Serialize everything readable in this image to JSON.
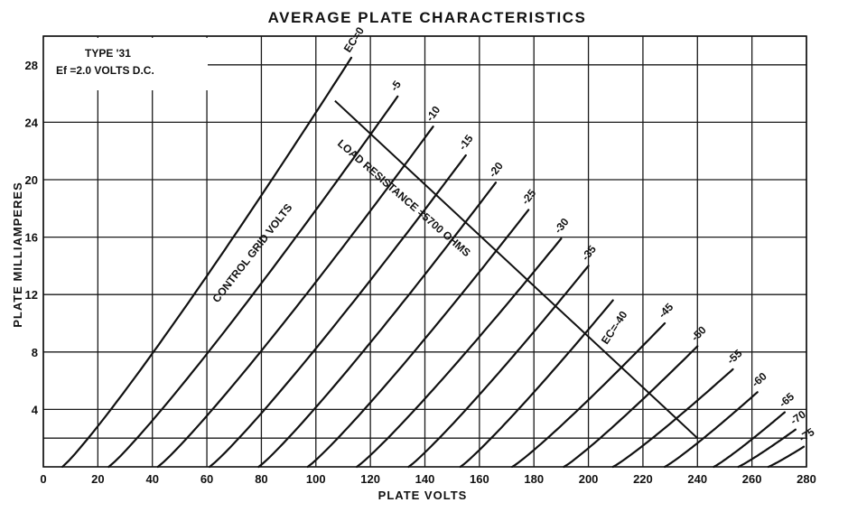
{
  "chart_data": {
    "type": "line",
    "title": "AVERAGE PLATE CHARACTERISTICS",
    "xlabel": "PLATE VOLTS",
    "ylabel": "PLATE MILLIAMPERES",
    "xlim": [
      0,
      280
    ],
    "ylim": [
      0,
      30
    ],
    "x_ticks": [
      "0",
      "20",
      "40",
      "60",
      "80",
      "100",
      "120",
      "140",
      "160",
      "180",
      "200",
      "220",
      "240",
      "260",
      "280"
    ],
    "y_ticks": [
      "4",
      "8",
      "12",
      "16",
      "20",
      "24",
      "28"
    ],
    "grid": true,
    "annotations": {
      "type_line": "TYPE '31",
      "filament_line": "Ef =2.0 VOLTS D.C.",
      "family_label": "CONTROL GRID VOLTS",
      "load_line_label": "LOAD RESISTANCE =5700 OHMS",
      "operating_point_label": "EC=-40"
    },
    "series": [
      {
        "name": "EC=0",
        "label": "EC=0",
        "x_start": 7,
        "x_end": 113,
        "y_end": 28.5
      },
      {
        "name": "-5",
        "label": "-5",
        "x_start": 24,
        "x_end": 130,
        "y_end": 25.8
      },
      {
        "name": "-10",
        "label": "-10",
        "x_start": 42,
        "x_end": 143,
        "y_end": 23.7
      },
      {
        "name": "-15",
        "label": "-15",
        "x_start": 61,
        "x_end": 155,
        "y_end": 21.7
      },
      {
        "name": "-20",
        "label": "-20",
        "x_start": 79,
        "x_end": 166,
        "y_end": 19.8
      },
      {
        "name": "-25",
        "label": "-25",
        "x_start": 97,
        "x_end": 178,
        "y_end": 17.9
      },
      {
        "name": "-30",
        "label": "-30",
        "x_start": 115,
        "x_end": 190,
        "y_end": 15.9
      },
      {
        "name": "-35",
        "label": "-35",
        "x_start": 134,
        "x_end": 200,
        "y_end": 14.0
      },
      {
        "name": "-40",
        "label": "",
        "x_start": 153,
        "x_end": 209,
        "y_end": 11.6
      },
      {
        "name": "-45",
        "label": "-45",
        "x_start": 172,
        "x_end": 228,
        "y_end": 10.0
      },
      {
        "name": "-50",
        "label": "-50",
        "x_start": 191,
        "x_end": 240,
        "y_end": 8.4
      },
      {
        "name": "-55",
        "label": "-55",
        "x_start": 209,
        "x_end": 253,
        "y_end": 6.8
      },
      {
        "name": "-60",
        "label": "-60",
        "x_start": 228,
        "x_end": 262,
        "y_end": 5.2
      },
      {
        "name": "-65",
        "label": "-65",
        "x_start": 246,
        "x_end": 272,
        "y_end": 3.8
      },
      {
        "name": "-70",
        "label": "-70",
        "x_start": 255,
        "x_end": 276,
        "y_end": 2.6
      },
      {
        "name": "-75",
        "label": "-75",
        "x_start": 266,
        "x_end": 279,
        "y_end": 1.4
      }
    ],
    "load_line": {
      "x": [
        107,
        240
      ],
      "y": [
        25.5,
        2.0
      ]
    }
  }
}
